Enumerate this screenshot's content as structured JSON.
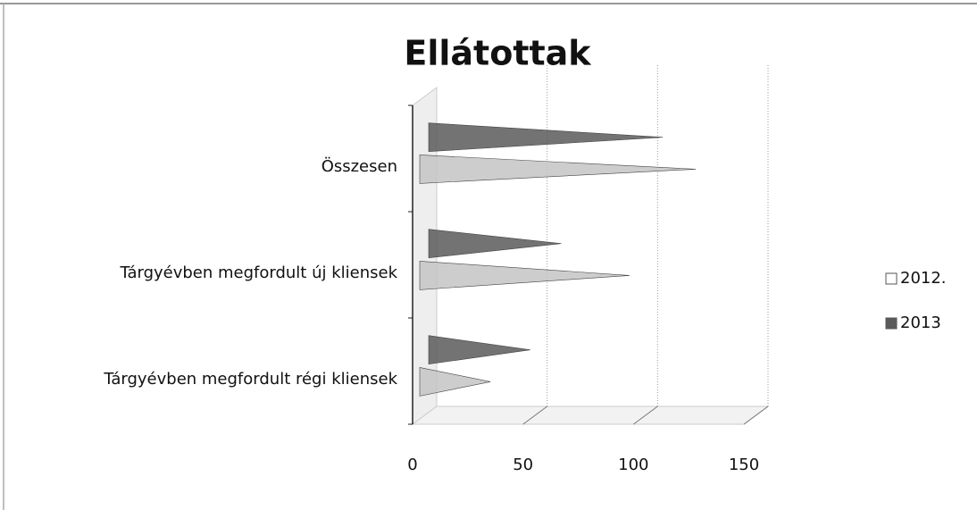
{
  "chart_data": {
    "type": "bar",
    "orientation": "horizontal",
    "title": "Ellátottak",
    "categories": [
      "Összesen",
      "Tárgyévben megfordult új kliensek",
      "Tárgyévben megfordult régi kliensek"
    ],
    "series": [
      {
        "name": "2012.",
        "color": "#c4c4c4",
        "values": [
          125,
          95,
          32
        ]
      },
      {
        "name": "2013",
        "color": "#5a5a5a",
        "values": [
          106,
          60,
          46
        ]
      }
    ],
    "xlim": [
      0,
      150
    ],
    "xticks": [
      0,
      50,
      100,
      150
    ],
    "grid": true,
    "legend": "right"
  }
}
